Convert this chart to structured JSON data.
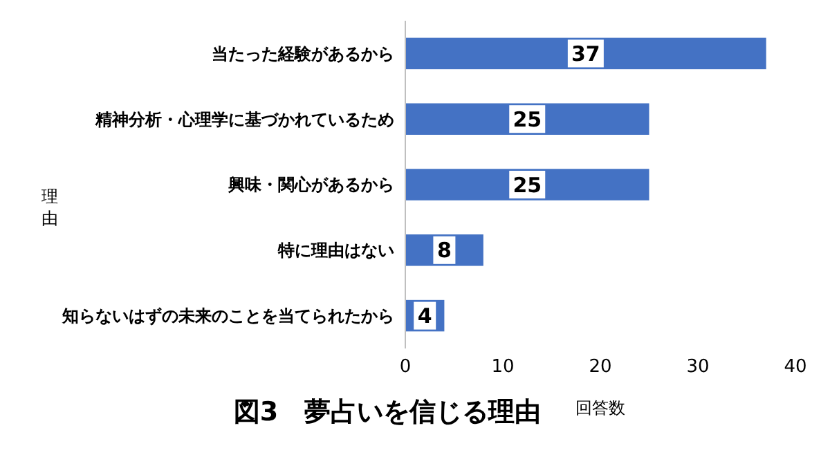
{
  "chart_data": {
    "type": "bar",
    "orientation": "horizontal",
    "title": "図3　夢占いを信じる理由",
    "xlabel": "回答数",
    "ylabel": "理由",
    "categories": [
      "当たった経験があるから",
      "精神分析・心理学に基づかれているため",
      "興味・関心があるから",
      "特に理由はない",
      "知らないはずの未来のことを当てられたから"
    ],
    "values": [
      37,
      25,
      25,
      8,
      4
    ],
    "color": "#4472c4",
    "xlim": [
      0,
      40
    ],
    "xticks": [
      0,
      10,
      20,
      30,
      40
    ],
    "data_labels": true
  }
}
